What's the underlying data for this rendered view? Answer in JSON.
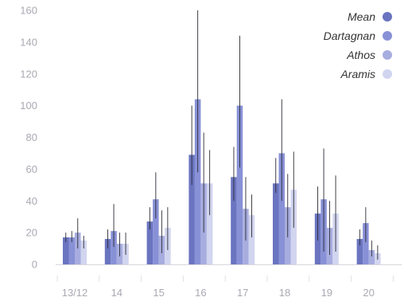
{
  "chart_data": {
    "type": "bar",
    "categories": [
      "13/12",
      "14",
      "15",
      "16",
      "17",
      "18",
      "19",
      "20"
    ],
    "ylim": [
      0,
      160
    ],
    "yticks": [
      0,
      20,
      40,
      60,
      80,
      100,
      120,
      140,
      160
    ],
    "grid": false,
    "legend_position": "top-right",
    "error_bars": true,
    "series": [
      {
        "name": "Mean",
        "color": "#6a74c0",
        "values": [
          17,
          16,
          27,
          69,
          55,
          51,
          32,
          16
        ],
        "err_low": [
          14,
          10,
          22,
          50,
          40,
          45,
          15,
          12
        ],
        "err_high": [
          20,
          22,
          36,
          100,
          74,
          67,
          49,
          22
        ]
      },
      {
        "name": "Dartagnan",
        "color": "#8891d6",
        "values": [
          17,
          21,
          41,
          104,
          100,
          70,
          41,
          26
        ],
        "err_low": [
          14,
          11,
          29,
          58,
          61,
          40,
          8,
          14
        ],
        "err_high": [
          21,
          38,
          58,
          160,
          144,
          104,
          73,
          36
        ]
      },
      {
        "name": "Athos",
        "color": "#a7addf",
        "values": [
          20,
          13,
          18,
          51,
          35,
          36,
          23,
          9
        ],
        "err_low": [
          10,
          5,
          7,
          20,
          15,
          17,
          6,
          5
        ],
        "err_high": [
          29,
          20,
          34,
          83,
          55,
          57,
          40,
          15
        ]
      },
      {
        "name": "Aramis",
        "color": "#d2d5ef",
        "values": [
          15,
          13,
          23,
          51,
          31,
          47,
          32,
          7
        ],
        "err_low": [
          10,
          6,
          9,
          31,
          17,
          23,
          8,
          3
        ],
        "err_high": [
          18,
          20,
          36,
          72,
          44,
          71,
          56,
          12
        ]
      }
    ]
  }
}
